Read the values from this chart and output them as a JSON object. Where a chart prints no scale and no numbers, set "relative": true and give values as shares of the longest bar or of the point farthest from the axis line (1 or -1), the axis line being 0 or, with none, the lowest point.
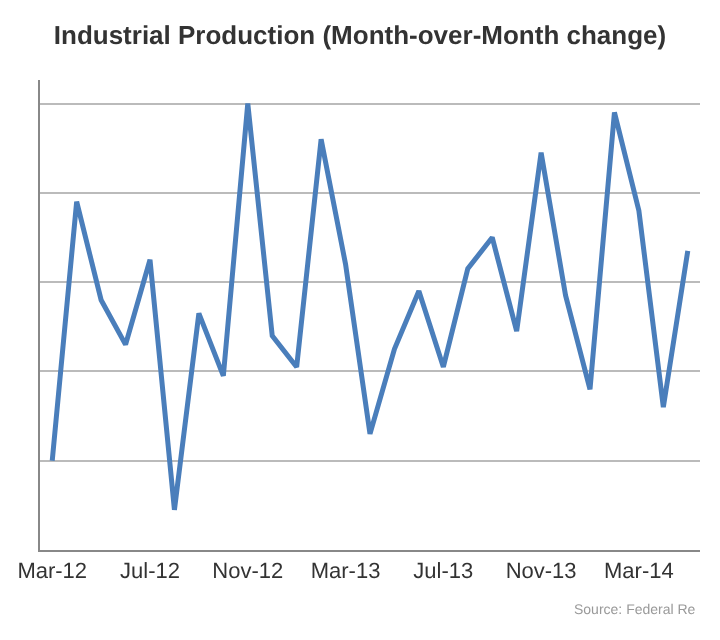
{
  "chart_data": {
    "type": "line",
    "title": "Industrial Production (Month-over-Month change)",
    "relative": true,
    "categories": [
      "Mar-12",
      null,
      null,
      null,
      "Jul-12",
      null,
      null,
      null,
      "Nov-12",
      null,
      null,
      null,
      "Mar-13",
      null,
      null,
      null,
      "Jul-13",
      null,
      null,
      null,
      "Nov-13",
      null,
      null,
      null,
      "Mar-14",
      null,
      null
    ],
    "series": [
      {
        "color": "#4a7ebb",
        "values": [
          0.2,
          0.78,
          0.56,
          0.46,
          0.65,
          0.09,
          0.53,
          0.39,
          1,
          0.48,
          0.41,
          0.92,
          0.64,
          0.26,
          0.45,
          0.58,
          0.41,
          0.63,
          0.7,
          0.49,
          0.89,
          0.57,
          0.36,
          0.98,
          0.76,
          0.32,
          0.67
        ]
      }
    ],
    "grid": "y",
    "marker": "none",
    "line_style": "solid",
    "annotations": [
      "Source: Federal Re"
    ]
  }
}
